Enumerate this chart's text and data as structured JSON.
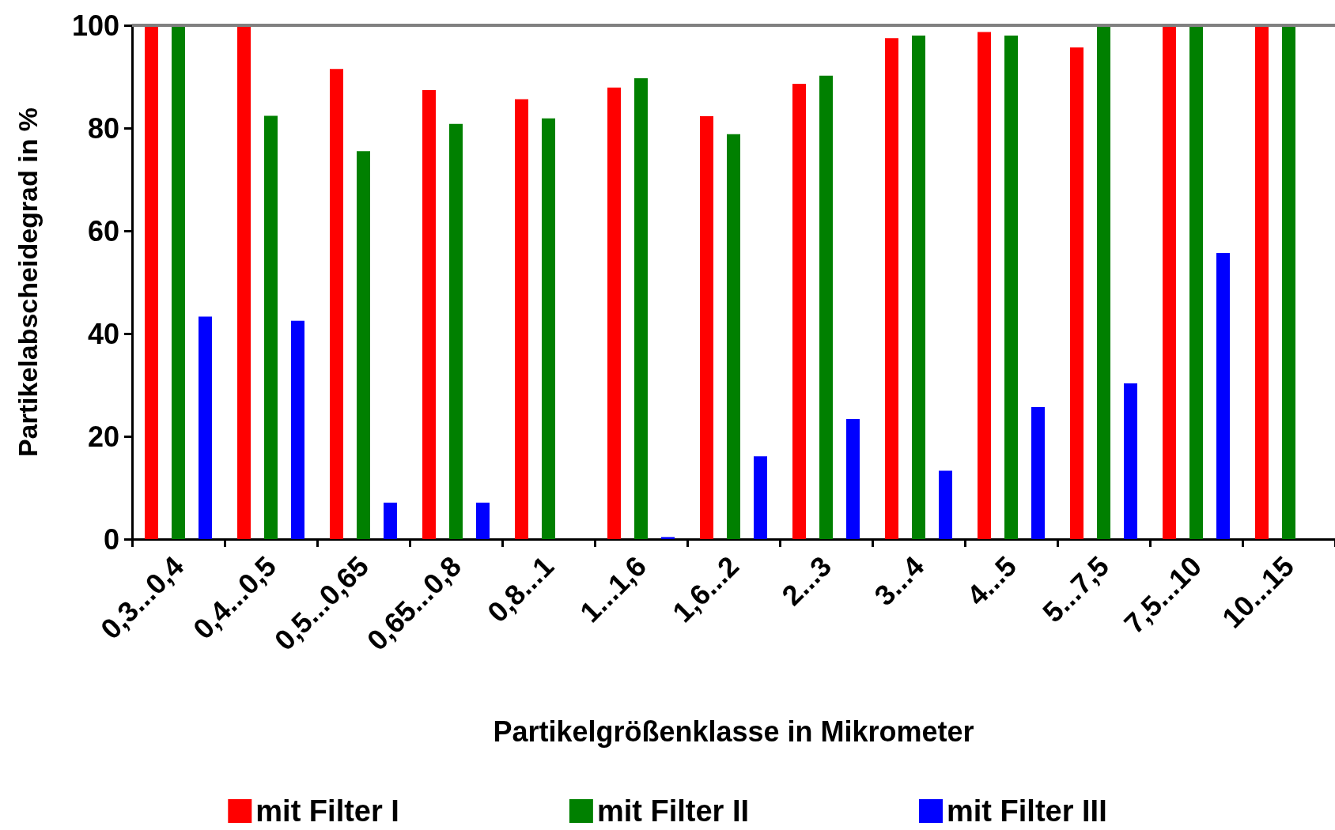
{
  "chart_data": {
    "type": "bar",
    "xlabel": "Partikelgrößenklasse in Mikrometer",
    "ylabel": "Partikelabscheidegrad in %",
    "categories": [
      "0,3...0,4",
      "0,4...0,5",
      "0,5...0,65",
      "0,65...0,8",
      "0,8...1",
      "1...1,6",
      "1,6...2",
      "2...3",
      "3...4",
      "4...5",
      "5...7,5",
      "7,5...10",
      "10...15"
    ],
    "series": [
      {
        "name": "mit Filter I",
        "color": "#ff0000",
        "values": [
          100,
          100,
          91.5,
          87.4,
          85.6,
          87.9,
          82.3,
          88.6,
          97.5,
          98.7,
          95.7,
          100,
          100
        ]
      },
      {
        "name": "mit Filter II",
        "color": "#008000",
        "values": [
          100,
          82.4,
          75.5,
          80.8,
          81.9,
          89.7,
          78.8,
          90.2,
          98,
          98,
          99.7,
          100,
          100
        ]
      },
      {
        "name": "mit Filter III",
        "color": "#0000ff",
        "values": [
          43.3,
          42.5,
          7.1,
          7.1,
          null,
          0.4,
          16.1,
          23.4,
          13.3,
          25.7,
          30.3,
          55.7,
          null
        ]
      }
    ],
    "ylim": [
      0,
      100
    ],
    "yticks": [
      0,
      20,
      40,
      60,
      80,
      100
    ],
    "ref_lines": [
      {
        "axis": "y",
        "value": 100,
        "color": "#808080"
      }
    ],
    "grid": false,
    "legend": "bottom"
  }
}
